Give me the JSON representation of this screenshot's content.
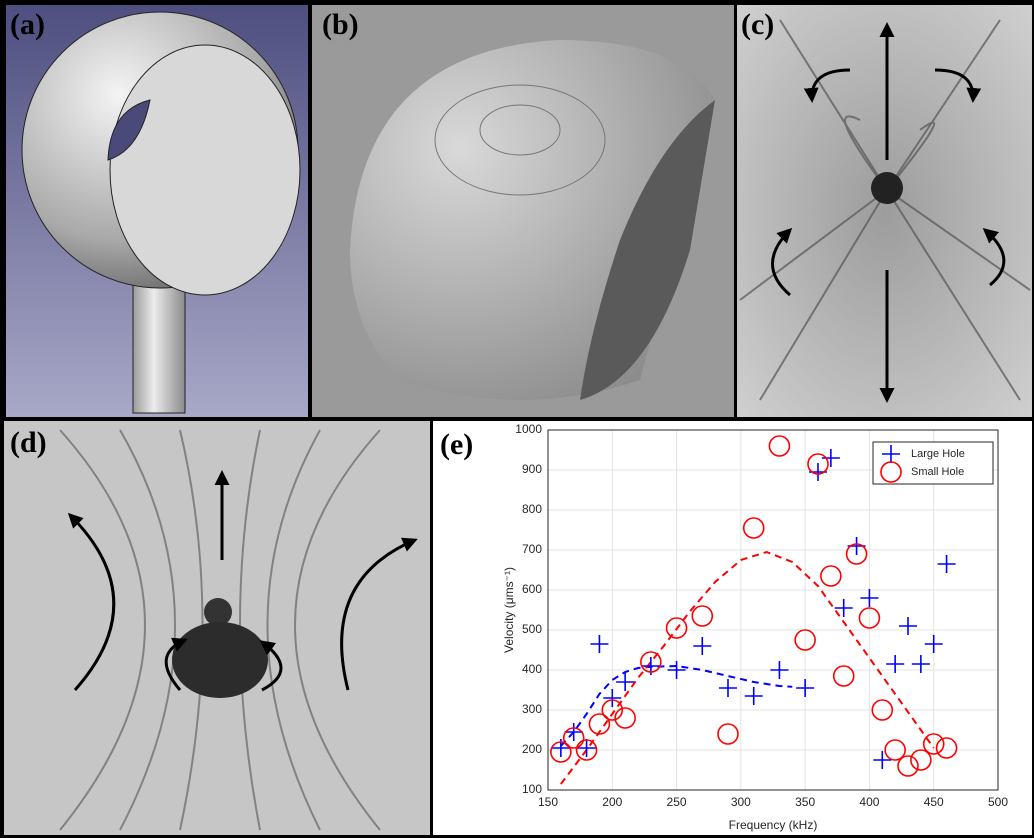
{
  "panels": {
    "a": "(a)",
    "b": "(b)",
    "c": "(c)",
    "d": "(d)",
    "e": "(e)"
  },
  "chart_data": {
    "type": "scatter",
    "xlabel": "Frequency (kHz)",
    "ylabel": "Velocity (μms⁻¹)",
    "xlim": [
      150,
      500
    ],
    "xticks": [
      150,
      200,
      250,
      300,
      350,
      400,
      450,
      500
    ],
    "ylim": [
      100,
      1000
    ],
    "yticks": [
      100,
      200,
      300,
      400,
      500,
      600,
      700,
      800,
      900,
      1000
    ],
    "grid": true,
    "legend": "upper right",
    "x": [
      160,
      170,
      180,
      190,
      200,
      210,
      230,
      250,
      270,
      290,
      310,
      330,
      350,
      360,
      370,
      380,
      390,
      400,
      410,
      420,
      430,
      440,
      450,
      460
    ],
    "series": [
      {
        "name": "Large Hole",
        "color": "#0000ff",
        "marker": "plus",
        "values": [
          205,
          245,
          205,
          465,
          330,
          370,
          410,
          400,
          460,
          355,
          335,
          400,
          355,
          895,
          930,
          555,
          710,
          580,
          175,
          415,
          510,
          415,
          465,
          665
        ]
      },
      {
        "name": "Small Hole",
        "color": "#ff0000",
        "marker": "circle",
        "values": [
          195,
          230,
          200,
          265,
          300,
          280,
          420,
          505,
          535,
          240,
          755,
          960,
          475,
          915,
          635,
          385,
          690,
          530,
          300,
          200,
          160,
          175,
          215,
          205
        ]
      }
    ],
    "fits": [
      {
        "color": "#0000ff",
        "x": [
          160,
          170,
          180,
          190,
          200,
          210,
          220,
          230,
          250,
          270,
          290,
          310,
          330,
          340
        ],
        "values": [
          210,
          245,
          290,
          340,
          375,
          395,
          405,
          408,
          410,
          400,
          385,
          370,
          360,
          358
        ]
      },
      {
        "color": "#ff0000",
        "x": [
          160,
          180,
          200,
          220,
          240,
          260,
          280,
          300,
          320,
          340,
          360,
          380,
          400,
          420,
          440,
          450
        ],
        "values": [
          115,
          200,
          290,
          380,
          460,
          545,
          620,
          675,
          695,
          670,
          610,
          520,
          430,
          340,
          250,
          205
        ]
      }
    ]
  }
}
